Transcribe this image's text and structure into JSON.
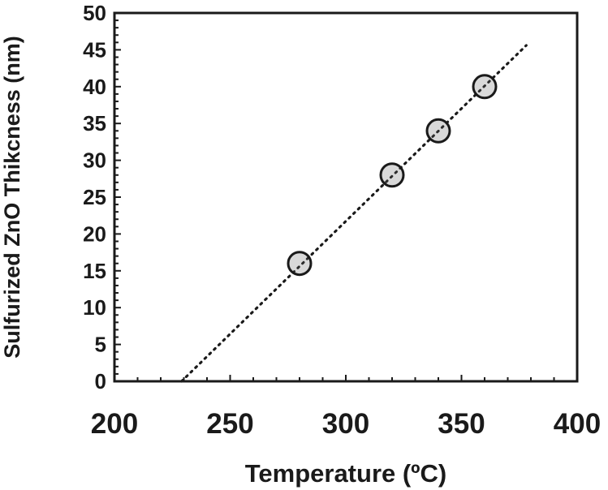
{
  "chart_data": {
    "type": "scatter",
    "title": "",
    "xlabel": "Temperature (ºC)",
    "ylabel": "Sulfurized ZnO Thikcness (nm)",
    "xlim": [
      200,
      400
    ],
    "ylim": [
      0,
      50
    ],
    "x_ticks": [
      200,
      250,
      300,
      350,
      400
    ],
    "y_ticks": [
      0,
      5,
      10,
      15,
      20,
      25,
      30,
      35,
      40,
      45,
      50
    ],
    "grid": false,
    "legend": "none",
    "series": [
      {
        "x": [
          280,
          320,
          340,
          360
        ],
        "y": [
          16,
          28,
          34,
          40
        ],
        "marker": "circle",
        "marker_fill": "#d9d9d9",
        "marker_edge": "#1a1a1a"
      }
    ],
    "trendline": {
      "style": "dotted",
      "color": "#1a1a1a",
      "x": [
        229,
        378
      ],
      "y": [
        0,
        45.6
      ]
    }
  }
}
